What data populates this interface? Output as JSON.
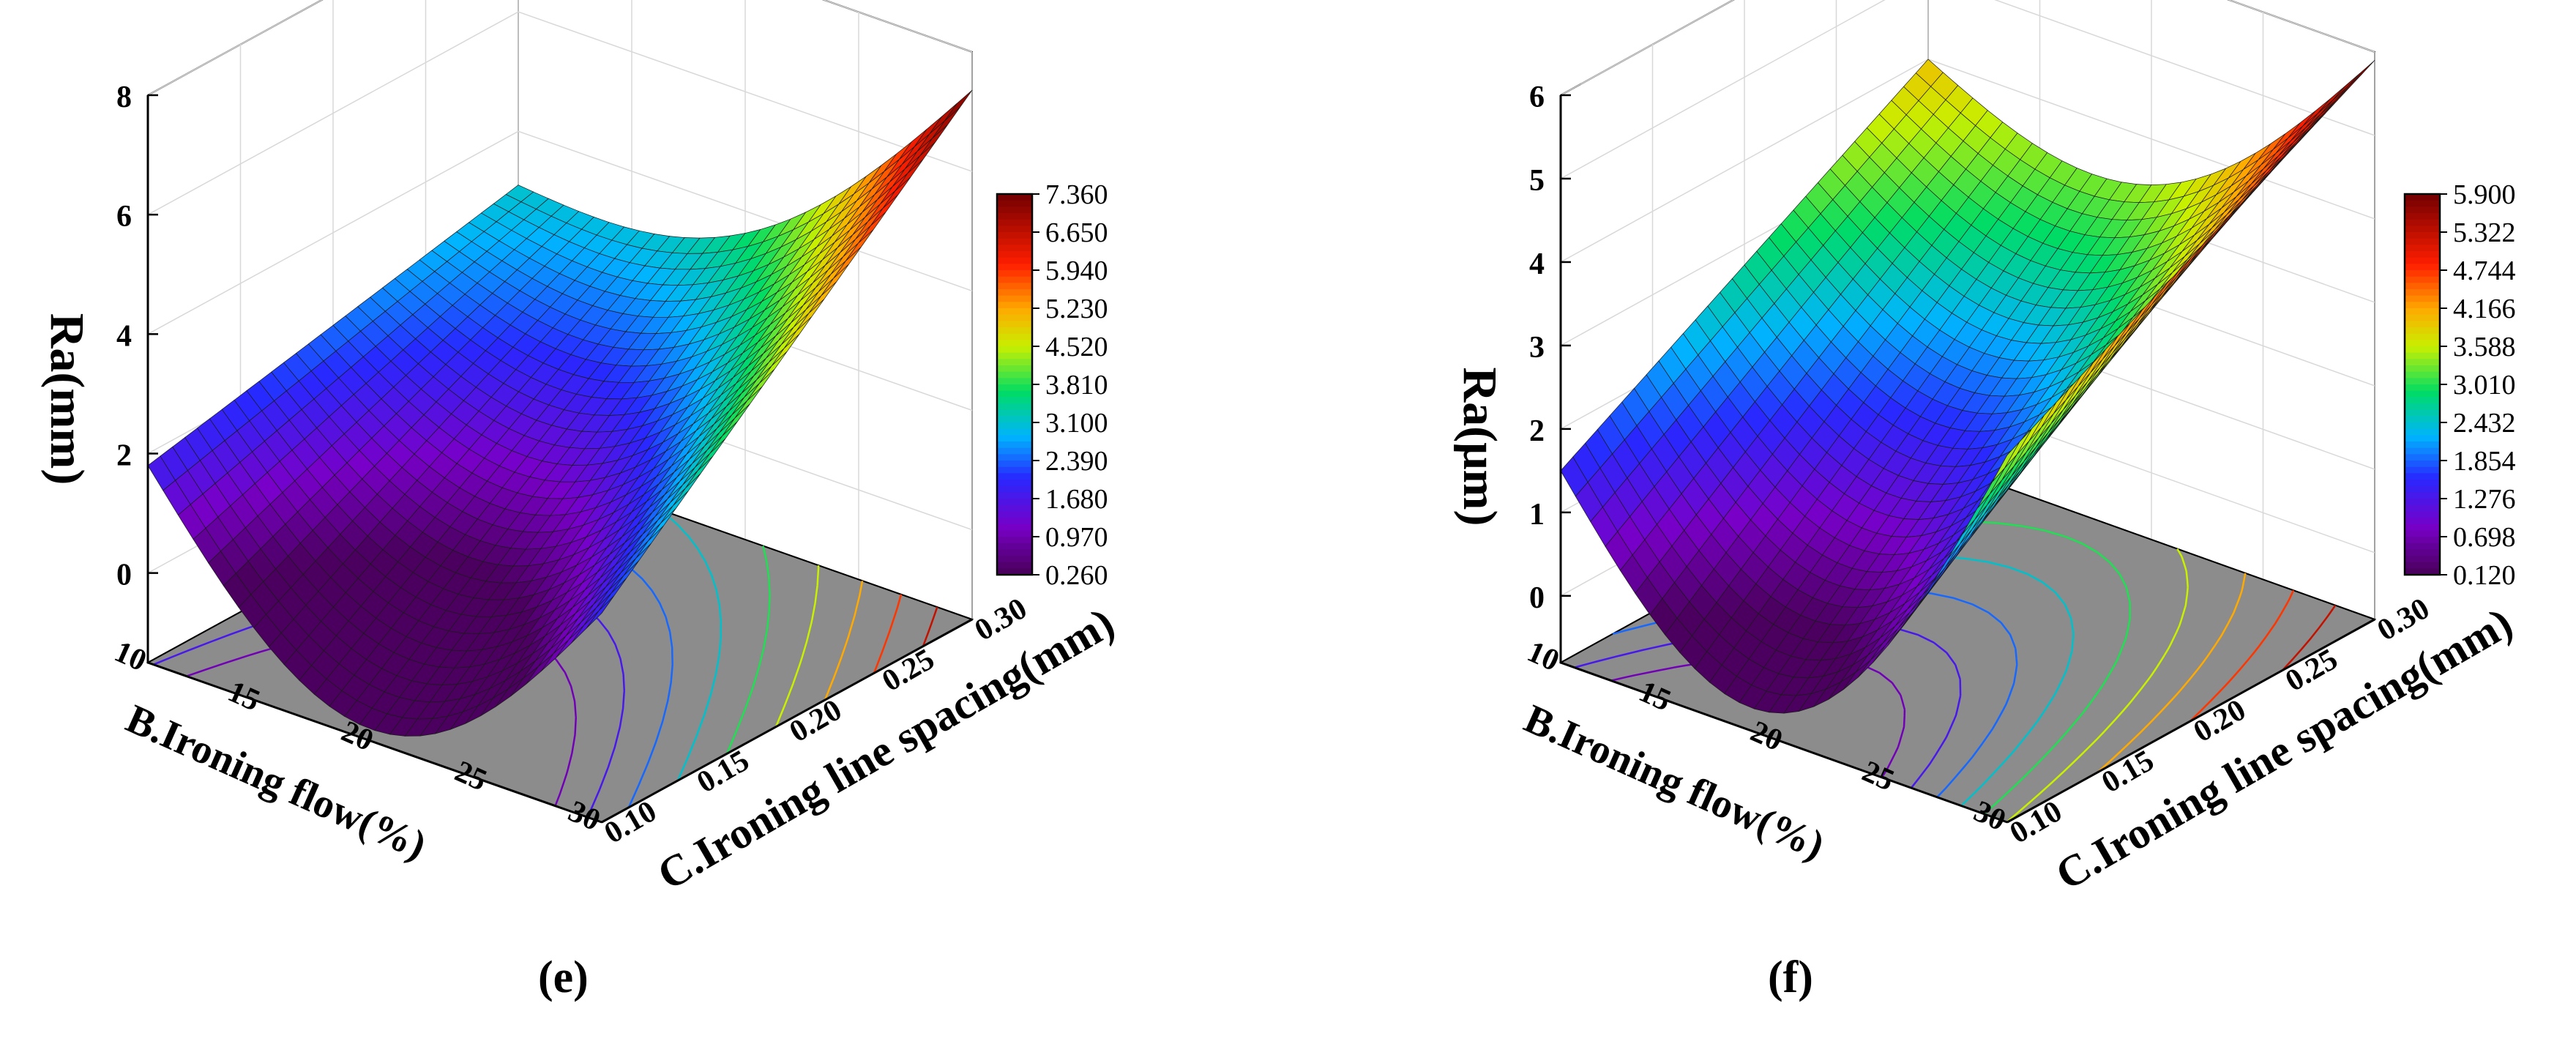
{
  "chart_data": [
    {
      "type": "surface3d",
      "panel_label": "(e)",
      "zlabel": "Ra(mm)",
      "xlabel": "B.Ironing flow(%)",
      "ylabel": "C.Ironing line spacing(mm)",
      "x_ticks": [
        "10",
        "15",
        "20",
        "25",
        "30"
      ],
      "y_ticks": [
        "0.10",
        "0.15",
        "0.20",
        "0.25",
        "0.30"
      ],
      "z_ticks": [
        "0",
        "2",
        "4",
        "6",
        "8"
      ],
      "xlim": [
        10,
        30
      ],
      "ylim": [
        0.1,
        0.3
      ],
      "zlim": [
        -1.5,
        8
      ],
      "colorbar_ticks": [
        "7.360",
        "6.650",
        "5.940",
        "5.230",
        "4.520",
        "3.810",
        "3.100",
        "2.390",
        "1.680",
        "0.970",
        "0.260"
      ],
      "colorbar_range": [
        0.26,
        7.36
      ],
      "surface_corners": {
        "x10_y010": 1.8,
        "x10_y030": 3.1,
        "x30_y010": 2.0,
        "x30_y030": 7.36
      },
      "surface_min": 0.26
    },
    {
      "type": "surface3d",
      "panel_label": "(f)",
      "zlabel": "Ra(μm)",
      "xlabel": "B.Ironing flow(%)",
      "ylabel": "C.Ironing line spacing(mm)",
      "x_ticks": [
        "10",
        "15",
        "20",
        "25",
        "30"
      ],
      "y_ticks": [
        "0.10",
        "0.15",
        "0.20",
        "0.25",
        "0.30"
      ],
      "z_ticks": [
        "0",
        "1",
        "2",
        "3",
        "4",
        "5",
        "6"
      ],
      "xlim": [
        10,
        30
      ],
      "ylim": [
        0.1,
        0.3
      ],
      "zlim": [
        -0.8,
        6
      ],
      "colorbar_ticks": [
        "5.900",
        "5.322",
        "4.744",
        "4.166",
        "3.588",
        "3.010",
        "2.432",
        "1.854",
        "1.276",
        "0.698",
        "0.120"
      ],
      "colorbar_range": [
        0.12,
        5.9
      ],
      "surface_corners": {
        "x10_y010": 1.5,
        "x10_y030": 4.0,
        "x30_y010": 3.6,
        "x30_y030": 5.9
      },
      "surface_min": 0.12
    }
  ]
}
